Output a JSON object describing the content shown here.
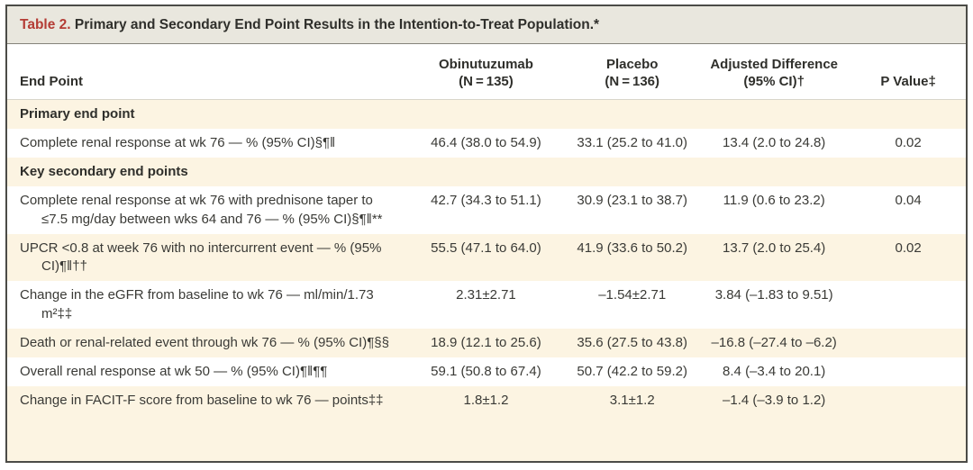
{
  "table": {
    "title_label": "Table 2.",
    "title_text": "Primary and Secondary End Point Results in the Intention-to-Treat Population.*",
    "columns": [
      {
        "label": "End Point",
        "sub": ""
      },
      {
        "label": "Obinutuzumab",
        "sub": "(N = 135)"
      },
      {
        "label": "Placebo",
        "sub": "(N = 136)"
      },
      {
        "label": "Adjusted Difference",
        "sub": "(95% CI)†"
      },
      {
        "label": "P Value‡",
        "sub": ""
      }
    ],
    "rows": [
      {
        "type": "section",
        "endpoint": "Primary end point",
        "obinutuzumab": "",
        "placebo": "",
        "adjusted_difference": "",
        "p_value": ""
      },
      {
        "type": "data",
        "endpoint": "Complete renal response at wk 76 — % (95% CI)§¶‖",
        "obinutuzumab": "46.4 (38.0 to 54.9)",
        "placebo": "33.1 (25.2 to 41.0)",
        "adjusted_difference": "13.4 (2.0 to 24.8)",
        "p_value": "0.02"
      },
      {
        "type": "section",
        "endpoint": "Key secondary end points",
        "obinutuzumab": "",
        "placebo": "",
        "adjusted_difference": "",
        "p_value": ""
      },
      {
        "type": "data",
        "endpoint": "Complete renal response at wk 76 with prednisone taper to ≤7.5 mg/day between wks 64 and 76 — % (95% CI)§¶‖**",
        "obinutuzumab": "42.7 (34.3 to 51.1)",
        "placebo": "30.9 (23.1 to 38.7)",
        "adjusted_difference": "11.9 (0.6 to 23.2)",
        "p_value": "0.04"
      },
      {
        "type": "data",
        "endpoint": "UPCR <0.8 at week 76 with no intercurrent event — % (95% CI)¶‖††",
        "obinutuzumab": "55.5 (47.1 to 64.0)",
        "placebo": "41.9 (33.6 to 50.2)",
        "adjusted_difference": "13.7 (2.0 to 25.4)",
        "p_value": "0.02"
      },
      {
        "type": "data",
        "endpoint": "Change in the eGFR from baseline to wk 76 — ml/min/1.73 m²‡‡",
        "obinutuzumab": "2.31±2.71",
        "placebo": "–1.54±2.71",
        "adjusted_difference": "3.84 (–1.83 to 9.51)",
        "p_value": ""
      },
      {
        "type": "data",
        "endpoint": "Death or renal-related event through wk 76 — % (95% CI)¶§§",
        "obinutuzumab": "18.9 (12.1 to 25.6)",
        "placebo": "35.6 (27.5 to 43.8)",
        "adjusted_difference": "–16.8 (–27.4 to –6.2)",
        "p_value": ""
      },
      {
        "type": "data",
        "endpoint": "Overall renal response at wk 50 — % (95% CI)¶‖¶¶",
        "obinutuzumab": "59.1 (50.8 to 67.4)",
        "placebo": "50.7 (42.2 to 59.2)",
        "adjusted_difference": "8.4 (–3.4 to 20.1)",
        "p_value": ""
      },
      {
        "type": "data",
        "endpoint": "Change in FACIT-F score from baseline to wk 76 — points‡‡",
        "obinutuzumab": "1.8±1.2",
        "placebo": "3.1±1.2",
        "adjusted_difference": "–1.4 (–3.9 to 1.2)",
        "p_value": ""
      }
    ],
    "colors": {
      "accent_red": "#b43c35",
      "stripe_beige": "#fcf4e2",
      "titlebar_gray": "#e9e7de",
      "border_dark": "#4b4b47"
    }
  }
}
